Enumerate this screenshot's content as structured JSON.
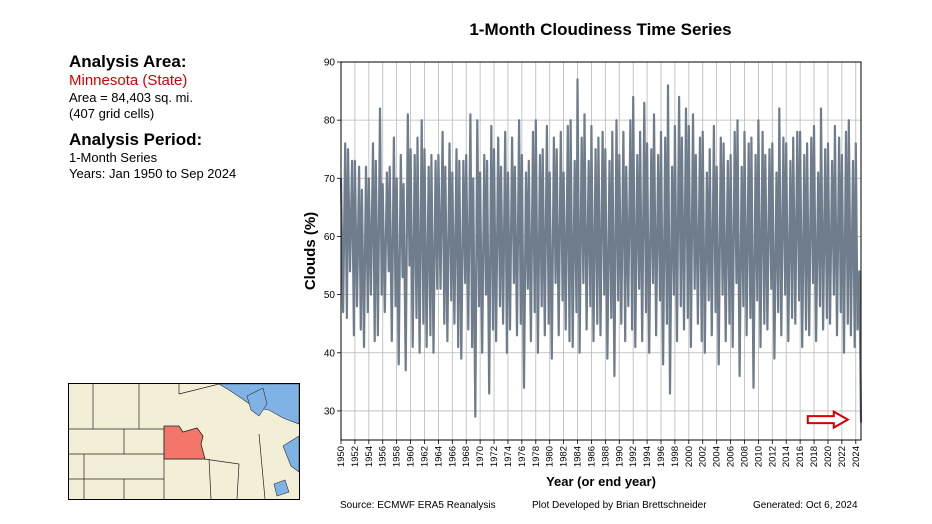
{
  "left_panel": {
    "area_heading": "Analysis Area:",
    "region_name": "Minnesota (State)",
    "area_text": "Area = 84,403 sq. mi.",
    "cells_text": "(407 grid cells)",
    "period_heading": "Analysis Period:",
    "series_text": "1-Month Series",
    "years_text": "Years: Jan 1950 to Sep 2024"
  },
  "footer": {
    "source": "Source: ECMWF ERA5 Reanalysis",
    "developer": "Plot Developed by Brian Brettschneider",
    "generated": "Generated: Oct 6, 2024"
  },
  "colors": {
    "line": "#6e7c8c",
    "highlight_state": "#f4766a",
    "map_land": "#f3efd6",
    "map_water": "#7fb2e5",
    "arrow": "#d40000"
  },
  "chart_data": {
    "type": "line",
    "title": "1-Month Cloudiness Time Series",
    "xlabel": "Year (or end year)",
    "ylabel": "Clouds (%)",
    "ylim": [
      25,
      90
    ],
    "xlim": [
      1950,
      2024.75
    ],
    "yticks": [
      30,
      40,
      50,
      60,
      70,
      80,
      90
    ],
    "xticks": [
      "1950",
      "1952",
      "1954",
      "1956",
      "1958",
      "1960",
      "1962",
      "1964",
      "1966",
      "1968",
      "1970",
      "1972",
      "1974",
      "1976",
      "1978",
      "1980",
      "1982",
      "1984",
      "1986",
      "1988",
      "1990",
      "1992",
      "1994",
      "1996",
      "1998",
      "2000",
      "2002",
      "2004",
      "2006",
      "2008",
      "2010",
      "2012",
      "2014",
      "2016",
      "2018",
      "2020",
      "2022",
      "2024"
    ],
    "grid": true,
    "series": [
      {
        "points": [
          [
            1950.0,
            70
          ],
          [
            1950.3,
            47
          ],
          [
            1950.6,
            76
          ],
          [
            1950.85,
            46
          ],
          [
            1951.0,
            75
          ],
          [
            1951.3,
            54
          ],
          [
            1951.6,
            73
          ],
          [
            1951.85,
            43
          ],
          [
            1952.0,
            73
          ],
          [
            1952.3,
            48
          ],
          [
            1952.6,
            72
          ],
          [
            1952.85,
            44
          ],
          [
            1953.0,
            68
          ],
          [
            1953.3,
            41
          ],
          [
            1953.6,
            72
          ],
          [
            1953.85,
            47
          ],
          [
            1954.0,
            70
          ],
          [
            1954.3,
            50
          ],
          [
            1954.6,
            76
          ],
          [
            1954.85,
            42
          ],
          [
            1955.0,
            73
          ],
          [
            1955.3,
            43
          ],
          [
            1955.6,
            82
          ],
          [
            1955.85,
            50
          ],
          [
            1956.0,
            69
          ],
          [
            1956.3,
            47
          ],
          [
            1956.6,
            71
          ],
          [
            1956.85,
            54
          ],
          [
            1957.0,
            72
          ],
          [
            1957.3,
            42
          ],
          [
            1957.6,
            77
          ],
          [
            1957.85,
            48
          ],
          [
            1958.0,
            70
          ],
          [
            1958.3,
            38
          ],
          [
            1958.6,
            74
          ],
          [
            1958.85,
            53
          ],
          [
            1959.0,
            69
          ],
          [
            1959.3,
            37
          ],
          [
            1959.6,
            81
          ],
          [
            1959.85,
            55
          ],
          [
            1960.0,
            75
          ],
          [
            1960.3,
            41
          ],
          [
            1960.6,
            74
          ],
          [
            1960.85,
            46
          ],
          [
            1961.0,
            77
          ],
          [
            1961.3,
            40
          ],
          [
            1961.6,
            80
          ],
          [
            1961.85,
            45
          ],
          [
            1962.0,
            75
          ],
          [
            1962.3,
            41
          ],
          [
            1962.6,
            72
          ],
          [
            1962.85,
            43
          ],
          [
            1963.0,
            74
          ],
          [
            1963.3,
            40
          ],
          [
            1963.6,
            73
          ],
          [
            1963.85,
            51
          ],
          [
            1964.0,
            74
          ],
          [
            1964.3,
            51
          ],
          [
            1964.6,
            78
          ],
          [
            1964.85,
            45
          ],
          [
            1965.0,
            72
          ],
          [
            1965.3,
            42
          ],
          [
            1965.6,
            76
          ],
          [
            1965.85,
            49
          ],
          [
            1966.0,
            71
          ],
          [
            1966.3,
            45
          ],
          [
            1966.6,
            75
          ],
          [
            1966.85,
            41
          ],
          [
            1967.0,
            73
          ],
          [
            1967.3,
            39
          ],
          [
            1967.6,
            73
          ],
          [
            1967.85,
            52
          ],
          [
            1968.0,
            74
          ],
          [
            1968.3,
            44
          ],
          [
            1968.6,
            81
          ],
          [
            1968.85,
            41
          ],
          [
            1969.0,
            70
          ],
          [
            1969.3,
            29
          ],
          [
            1969.6,
            80
          ],
          [
            1969.85,
            48
          ],
          [
            1970.0,
            71
          ],
          [
            1970.3,
            40
          ],
          [
            1970.6,
            74
          ],
          [
            1970.85,
            50
          ],
          [
            1971.0,
            73
          ],
          [
            1971.3,
            33
          ],
          [
            1971.6,
            79
          ],
          [
            1971.85,
            44
          ],
          [
            1972.0,
            75
          ],
          [
            1972.3,
            42
          ],
          [
            1972.6,
            77
          ],
          [
            1972.85,
            48
          ],
          [
            1973.0,
            72
          ],
          [
            1973.3,
            45
          ],
          [
            1973.6,
            78
          ],
          [
            1973.85,
            40
          ],
          [
            1974.0,
            71
          ],
          [
            1974.3,
            44
          ],
          [
            1974.6,
            77
          ],
          [
            1974.85,
            52
          ],
          [
            1975.0,
            72
          ],
          [
            1975.3,
            43
          ],
          [
            1975.6,
            80
          ],
          [
            1975.85,
            45
          ],
          [
            1976.0,
            74
          ],
          [
            1976.3,
            34
          ],
          [
            1976.6,
            71
          ],
          [
            1976.85,
            51
          ],
          [
            1977.0,
            73
          ],
          [
            1977.3,
            42
          ],
          [
            1977.6,
            78
          ],
          [
            1977.85,
            47
          ],
          [
            1978.0,
            80
          ],
          [
            1978.3,
            40
          ],
          [
            1978.6,
            74
          ],
          [
            1978.85,
            48
          ],
          [
            1979.0,
            75
          ],
          [
            1979.3,
            43
          ],
          [
            1979.6,
            79
          ],
          [
            1979.85,
            45
          ],
          [
            1980.0,
            71
          ],
          [
            1980.3,
            39
          ],
          [
            1980.6,
            77
          ],
          [
            1980.85,
            52
          ],
          [
            1981.0,
            75
          ],
          [
            1981.3,
            43
          ],
          [
            1981.6,
            78
          ],
          [
            1981.85,
            49
          ],
          [
            1982.0,
            71
          ],
          [
            1982.3,
            44
          ],
          [
            1982.6,
            79
          ],
          [
            1982.85,
            42
          ],
          [
            1983.0,
            80
          ],
          [
            1983.3,
            41
          ],
          [
            1983.6,
            73
          ],
          [
            1983.85,
            47
          ],
          [
            1984.0,
            87
          ],
          [
            1984.3,
            40
          ],
          [
            1984.6,
            77
          ],
          [
            1984.85,
            52
          ],
          [
            1985.0,
            81
          ],
          [
            1985.3,
            44
          ],
          [
            1985.6,
            73
          ],
          [
            1985.85,
            48
          ],
          [
            1986.0,
            79
          ],
          [
            1986.3,
            42
          ],
          [
            1986.6,
            75
          ],
          [
            1986.85,
            45
          ],
          [
            1987.0,
            77
          ],
          [
            1987.3,
            43
          ],
          [
            1987.6,
            78
          ],
          [
            1987.85,
            50
          ],
          [
            1988.0,
            75
          ],
          [
            1988.3,
            39
          ],
          [
            1988.6,
            73
          ],
          [
            1988.85,
            46
          ],
          [
            1989.0,
            78
          ],
          [
            1989.3,
            36
          ],
          [
            1989.6,
            80
          ],
          [
            1989.85,
            49
          ],
          [
            1990.0,
            74
          ],
          [
            1990.3,
            45
          ],
          [
            1990.6,
            78
          ],
          [
            1990.85,
            42
          ],
          [
            1991.0,
            72
          ],
          [
            1991.3,
            48
          ],
          [
            1991.6,
            80
          ],
          [
            1991.85,
            44
          ],
          [
            1992.0,
            84
          ],
          [
            1992.3,
            41
          ],
          [
            1992.6,
            74
          ],
          [
            1992.85,
            51
          ],
          [
            1993.0,
            78
          ],
          [
            1993.3,
            42
          ],
          [
            1993.6,
            83
          ],
          [
            1993.85,
            47
          ],
          [
            1994.0,
            76
          ],
          [
            1994.3,
            40
          ],
          [
            1994.6,
            75
          ],
          [
            1994.85,
            52
          ],
          [
            1995.0,
            81
          ],
          [
            1995.3,
            43
          ],
          [
            1995.6,
            74
          ],
          [
            1995.85,
            49
          ],
          [
            1996.0,
            78
          ],
          [
            1996.3,
            38
          ],
          [
            1996.6,
            77
          ],
          [
            1996.85,
            45
          ],
          [
            1997.0,
            86
          ],
          [
            1997.3,
            33
          ],
          [
            1997.6,
            72
          ],
          [
            1997.85,
            50
          ],
          [
            1998.0,
            79
          ],
          [
            1998.3,
            42
          ],
          [
            1998.6,
            84
          ],
          [
            1998.85,
            48
          ],
          [
            1999.0,
            77
          ],
          [
            1999.3,
            44
          ],
          [
            1999.6,
            82
          ],
          [
            1999.85,
            46
          ],
          [
            2000.0,
            79
          ],
          [
            2000.3,
            41
          ],
          [
            2000.6,
            81
          ],
          [
            2000.85,
            51
          ],
          [
            2001.0,
            74
          ],
          [
            2001.3,
            45
          ],
          [
            2001.6,
            77
          ],
          [
            2001.85,
            42
          ],
          [
            2002.0,
            78
          ],
          [
            2002.3,
            40
          ],
          [
            2002.6,
            71
          ],
          [
            2002.85,
            49
          ],
          [
            2003.0,
            75
          ],
          [
            2003.3,
            43
          ],
          [
            2003.6,
            79
          ],
          [
            2003.85,
            47
          ],
          [
            2004.0,
            72
          ],
          [
            2004.3,
            38
          ],
          [
            2004.6,
            77
          ],
          [
            2004.85,
            50
          ],
          [
            2005.0,
            76
          ],
          [
            2005.3,
            42
          ],
          [
            2005.6,
            73
          ],
          [
            2005.85,
            45
          ],
          [
            2006.0,
            74
          ],
          [
            2006.3,
            41
          ],
          [
            2006.6,
            78
          ],
          [
            2006.85,
            52
          ],
          [
            2007.0,
            80
          ],
          [
            2007.3,
            36
          ],
          [
            2007.6,
            72
          ],
          [
            2007.85,
            48
          ],
          [
            2008.0,
            78
          ],
          [
            2008.3,
            43
          ],
          [
            2008.6,
            76
          ],
          [
            2008.85,
            46
          ],
          [
            2009.0,
            77
          ],
          [
            2009.3,
            34
          ],
          [
            2009.6,
            74
          ],
          [
            2009.85,
            49
          ],
          [
            2010.0,
            80
          ],
          [
            2010.3,
            41
          ],
          [
            2010.6,
            78
          ],
          [
            2010.85,
            45
          ],
          [
            2011.0,
            74
          ],
          [
            2011.3,
            44
          ],
          [
            2011.6,
            75
          ],
          [
            2011.85,
            51
          ],
          [
            2012.0,
            76
          ],
          [
            2012.3,
            39
          ],
          [
            2012.6,
            71
          ],
          [
            2012.85,
            47
          ],
          [
            2013.0,
            82
          ],
          [
            2013.3,
            43
          ],
          [
            2013.6,
            77
          ],
          [
            2013.85,
            50
          ],
          [
            2014.0,
            76
          ],
          [
            2014.3,
            42
          ],
          [
            2014.6,
            73
          ],
          [
            2014.85,
            46
          ],
          [
            2015.0,
            77
          ],
          [
            2015.3,
            45
          ],
          [
            2015.6,
            78
          ],
          [
            2015.85,
            49
          ],
          [
            2016.0,
            78
          ],
          [
            2016.3,
            41
          ],
          [
            2016.6,
            74
          ],
          [
            2016.85,
            44
          ],
          [
            2017.0,
            76
          ],
          [
            2017.3,
            43
          ],
          [
            2017.6,
            77
          ],
          [
            2017.85,
            52
          ],
          [
            2018.0,
            79
          ],
          [
            2018.3,
            42
          ],
          [
            2018.6,
            71
          ],
          [
            2018.85,
            48
          ],
          [
            2019.0,
            82
          ],
          [
            2019.3,
            44
          ],
          [
            2019.6,
            75
          ],
          [
            2019.85,
            46
          ],
          [
            2020.0,
            76
          ],
          [
            2020.3,
            45
          ],
          [
            2020.6,
            73
          ],
          [
            2020.85,
            50
          ],
          [
            2021.0,
            79
          ],
          [
            2021.3,
            43
          ],
          [
            2021.6,
            77
          ],
          [
            2021.85,
            47
          ],
          [
            2022.0,
            74
          ],
          [
            2022.3,
            40
          ],
          [
            2022.6,
            78
          ],
          [
            2022.85,
            45
          ],
          [
            2023.0,
            80
          ],
          [
            2023.3,
            43
          ],
          [
            2023.6,
            73
          ],
          [
            2023.85,
            41
          ],
          [
            2024.0,
            76
          ],
          [
            2024.25,
            44
          ],
          [
            2024.5,
            54
          ],
          [
            2024.75,
            28
          ]
        ]
      }
    ]
  }
}
